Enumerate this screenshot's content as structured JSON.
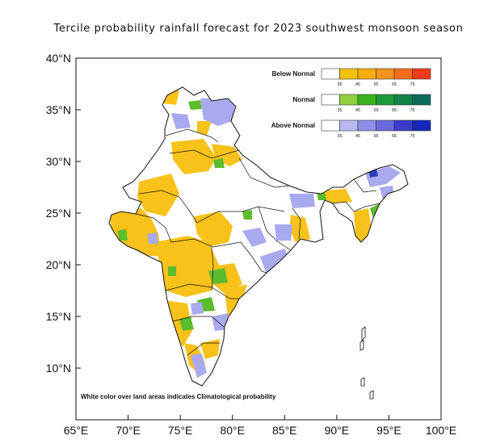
{
  "title": "Tercile probability rainfall forecast for 2023 southwest monsoon  season",
  "axes": {
    "x_ticks": [
      "65°E",
      "70°E",
      "75°E",
      "80°E",
      "85°E",
      "90°E",
      "95°E",
      "100°E"
    ],
    "y_ticks": [
      "40°N",
      "35°N",
      "30°N",
      "25°N",
      "20°N",
      "15°N",
      "10°N"
    ],
    "lon_range": [
      65,
      100
    ],
    "lat_range": [
      5,
      40
    ]
  },
  "legend": [
    {
      "label": "Below Normal",
      "ticks": [
        "35",
        "45",
        "55",
        "65",
        "75"
      ],
      "colors": [
        "#ffffff",
        "#f4c20d",
        "#f8ad0a",
        "#f7931e",
        "#f46d1b",
        "#ef3b1a"
      ]
    },
    {
      "label": "Normal",
      "ticks": [
        "35",
        "45",
        "55",
        "65",
        "75"
      ],
      "colors": [
        "#ffffff",
        "#8fd13f",
        "#3cb21c",
        "#1f9a3a",
        "#138247",
        "#0b6a5c"
      ]
    },
    {
      "label": "Above Normal",
      "ticks": [
        "35",
        "45",
        "55",
        "65",
        "75"
      ],
      "colors": [
        "#ffffff",
        "#b9b9f2",
        "#8e8ee8",
        "#6a6adf",
        "#3b3bc9",
        "#1628b8"
      ]
    }
  ],
  "note": "White color over land areas indicates Climatological probability",
  "colors": {
    "land_below": "#f8c21a",
    "land_normal": "#5cbc2e",
    "land_above": "#a9a9ef",
    "land_above_dark": "#2b3fb5",
    "boundary": "#111111"
  }
}
